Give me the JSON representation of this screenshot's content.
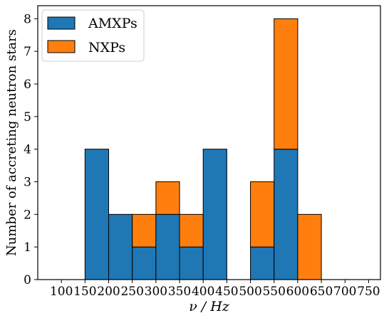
{
  "chart_data": {
    "type": "bar",
    "stacked": true,
    "xlabel": "ν / Hz",
    "ylabel": "Number of accreting neutron stars",
    "xlim": [
      50,
      775
    ],
    "ylim": [
      0,
      8.4
    ],
    "x_ticks": [
      "100",
      "150",
      "200",
      "250",
      "300",
      "350",
      "400",
      "450",
      "500",
      "550",
      "600",
      "650",
      "700",
      "750"
    ],
    "x_tick_values": [
      100,
      150,
      200,
      250,
      300,
      350,
      400,
      450,
      500,
      550,
      600,
      650,
      700,
      750
    ],
    "y_ticks": [
      "0",
      "1",
      "2",
      "3",
      "4",
      "5",
      "6",
      "7",
      "8"
    ],
    "y_tick_values": [
      0,
      1,
      2,
      3,
      4,
      5,
      6,
      7,
      8
    ],
    "bin_edges": [
      100,
      150,
      200,
      250,
      300,
      350,
      400,
      450,
      500,
      550,
      600,
      650,
      700,
      750
    ],
    "series": [
      {
        "name": "AMXPs",
        "color": "#1f77b4",
        "values": [
          0,
          4,
          2,
          1,
          2,
          1,
          4,
          0,
          1,
          4,
          0,
          0,
          0
        ]
      },
      {
        "name": "NXPs",
        "color": "#ff7f0e",
        "values": [
          0,
          0,
          0,
          1,
          1,
          1,
          0,
          0,
          2,
          4,
          2,
          0,
          0
        ]
      }
    ],
    "legend_position": "top-left",
    "grid": false
  }
}
